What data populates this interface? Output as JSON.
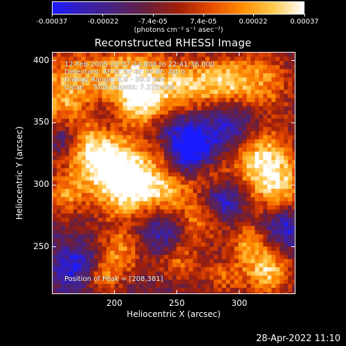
{
  "colorbar": {
    "tick_labels": [
      "-0.00037",
      "-0.00022",
      "-7.4e-05",
      "7.4e-05",
      "0.00022",
      "0.00037"
    ],
    "tick_values": [
      -0.00037,
      -0.00022,
      -7.4e-05,
      7.4e-05,
      0.00022,
      0.00037
    ],
    "range": [
      -0.00037,
      0.00037
    ],
    "colormap": [
      "#1a1aff",
      "#3a1fb0",
      "#4a237a",
      "#6b1f3c",
      "#a0200a",
      "#e64a00",
      "#ff8a00",
      "#ffc94a",
      "#ffffff"
    ]
  },
  "chart_data": {
    "type": "heatmap",
    "title": "Reconstructed RHESSI Image",
    "units": "(photons cm⁻² s⁻¹ asec⁻²)",
    "xlabel": "Heliocentric X (arcsec)",
    "ylabel": "Heliocentric Y (arcsec)",
    "xlim": [
      150,
      345
    ],
    "ylim": [
      212,
      407
    ],
    "xticks": [
      200,
      250,
      300
    ],
    "yticks": [
      250,
      300,
      350,
      400
    ],
    "overlay_lines": [
      "12-Feb-2005 22:37:24.000 to 22:41:36.000",
      "Detectors: 3F 4F 5F 6F 7F 8F, Att 0",
      "Energy Range: 6.0 - 50.0 keV",
      "Clean    Total Counts: 7.22E+03"
    ],
    "peak_text": "Position of Peak = [208,381]",
    "peak_position": [
      208,
      381
    ],
    "grid": false
  },
  "footer": {
    "date": "28-Apr-2022 11:10"
  }
}
